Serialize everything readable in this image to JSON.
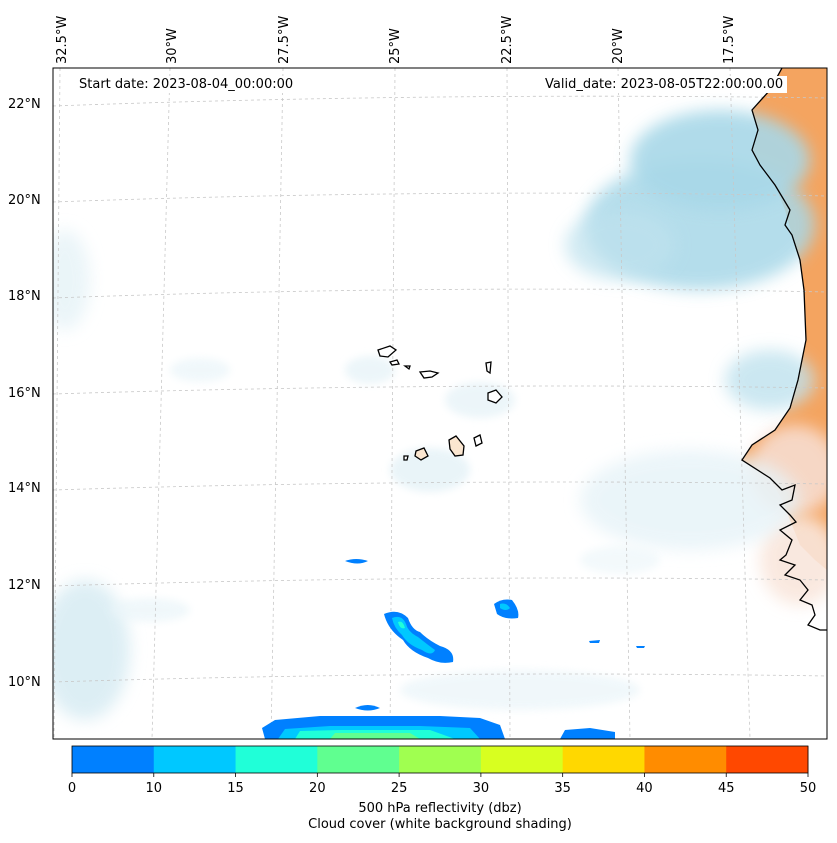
{
  "start_date": "Start date: 2023-08-04_00:00:00",
  "valid_date": "Valid_date: 2023-08-05T22:00:00.00",
  "lat_labels": [
    "22°N",
    "20°N",
    "18°N",
    "16°N",
    "14°N",
    "12°N",
    "10°N"
  ],
  "lon_labels": [
    "32.5°W",
    "30°W",
    "27.5°W",
    "25°W",
    "22.5°W",
    "20°W",
    "17.5°W"
  ],
  "colorbar": {
    "ticks": [
      "0",
      "10",
      "15",
      "20",
      "25",
      "30",
      "35",
      "40",
      "45",
      "50"
    ],
    "colors": [
      "#0080ff",
      "#00c8ff",
      "#20ffd8",
      "#60ff90",
      "#a0ff50",
      "#d8ff20",
      "#ffd800",
      "#ff8c00",
      "#ff4800"
    ],
    "title_line1": "500 hPa reflectivity (dbz)",
    "title_line2": "Cloud cover (white background shading)"
  },
  "colors": {
    "land": "#f4a460",
    "cloud": "#a8d8e8",
    "coast": "#000000"
  }
}
